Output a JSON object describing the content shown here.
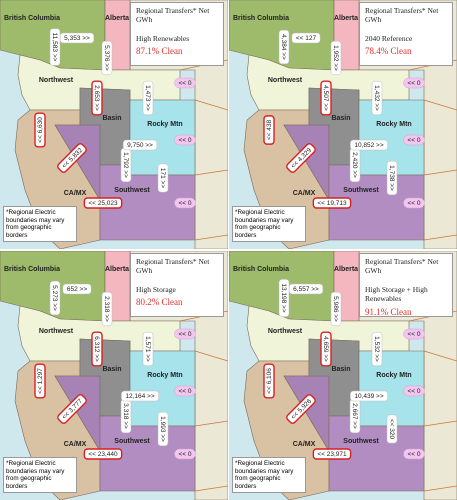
{
  "legend_title": "Regional Transfers* Net GWh",
  "footnote": "*Regional Electric boundaries may vary from geographic borders",
  "regions": {
    "british_columbia": "British Columbia",
    "alberta": "Alberta",
    "northwest": "Northwest",
    "basin": "Basin",
    "rocky_mtn": "Rocky Mtn",
    "ca_mx": "CA/MX",
    "southwest": "Southwest"
  },
  "panels": [
    {
      "scenario": "High Renewables",
      "clean": "87.1% Clean",
      "flows": [
        "5,353 >>",
        "11,583 >>",
        "5,376 >>",
        "<< 0",
        "2,653 >>",
        "1,473 >>",
        "<< 6,630",
        "<< 5,832",
        "1,792 >>",
        "9,750 >>",
        "<< 0",
        "171 >>",
        "<< 0",
        "<< 25,023"
      ]
    },
    {
      "scenario": "2040 Reference",
      "clean": "78.4% Clean",
      "flows": [
        "<< 127",
        "4,384 >>",
        "1,952 >>",
        "<< 0",
        "4,507 >>",
        "1,432 >>",
        "<< 438",
        "<< 4,329",
        "2,420 >>",
        "10,852 >>",
        "<< 0",
        "1,738 >>",
        "<< 0",
        "<< 19,713"
      ]
    },
    {
      "scenario": "High Storage",
      "clean": "80.2% Clean",
      "flows": [
        "652 >>",
        "5,273 >>",
        "2,318 >>",
        "<< 0",
        "6,312 >>",
        "1,571 >>",
        "<< 1,297",
        "<< 3,777",
        "3,318 >>",
        "12,164 >>",
        "<< 0",
        "1,993 >>",
        "<< 0",
        "<< 23,440"
      ]
    },
    {
      "scenario": "High Storage + High Renewables",
      "clean": "91.1% Clean",
      "flows": [
        "6,557 >>",
        "13,198 >>",
        "5,986 >>",
        "<< 0",
        "4,659 >>",
        "1,532 >>",
        "<< 6,106",
        "<< 5,926",
        "2,667 >>",
        "10,439 >>",
        "<< 0",
        "<< 320",
        "<< 0",
        "<< 23,971"
      ]
    }
  ]
}
